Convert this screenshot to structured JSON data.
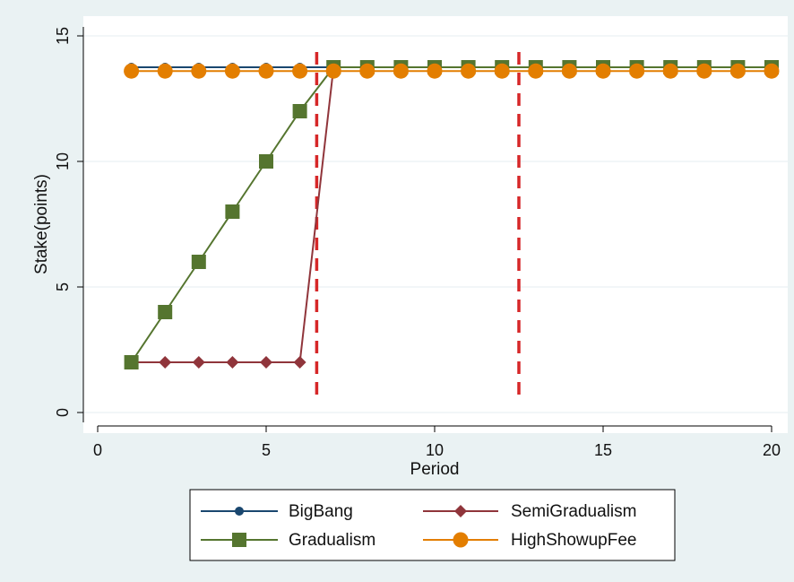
{
  "chart_data": {
    "type": "line",
    "title": "",
    "xlabel": "Period",
    "ylabel": "Stake(points)",
    "xlim": [
      0,
      20
    ],
    "ylim": [
      0,
      15
    ],
    "x_ticks": [
      "0",
      "5",
      "10",
      "15",
      "20"
    ],
    "y_ticks": [
      "0",
      "5",
      "10",
      "15"
    ],
    "grid": "horizontal",
    "legend_position": "bottom",
    "vertical_reference_lines": [
      6.5,
      12.5
    ],
    "reference_line_color": "#d62728",
    "series": [
      {
        "name": "BigBang",
        "color": "#1a476f",
        "marker": "circle-small",
        "x": [
          1,
          2,
          3,
          4,
          5,
          6,
          7,
          8,
          9,
          10,
          11,
          12,
          13,
          14,
          15,
          16,
          17,
          18,
          19,
          20
        ],
        "y": [
          13.75,
          13.75,
          13.75,
          13.75,
          13.75,
          13.75,
          13.75,
          13.75,
          13.75,
          13.75,
          13.75,
          13.75,
          13.75,
          13.75,
          13.75,
          13.75,
          13.75,
          13.75,
          13.75,
          13.75
        ]
      },
      {
        "name": "SemiGradualism",
        "color": "#90353b",
        "marker": "diamond",
        "x": [
          1,
          2,
          3,
          4,
          5,
          6,
          7,
          8,
          9,
          10,
          11,
          12,
          13,
          14,
          15,
          16,
          17,
          18,
          19,
          20
        ],
        "y": [
          2,
          2,
          2,
          2,
          2,
          2,
          13.75,
          13.75,
          13.75,
          13.75,
          13.75,
          13.75,
          13.75,
          13.75,
          13.75,
          13.75,
          13.75,
          13.75,
          13.75,
          13.75
        ]
      },
      {
        "name": "Gradualism",
        "color": "#55752f",
        "marker": "square",
        "x": [
          1,
          2,
          3,
          4,
          5,
          6,
          7,
          8,
          9,
          10,
          11,
          12,
          13,
          14,
          15,
          16,
          17,
          18,
          19,
          20
        ],
        "y": [
          2,
          4,
          6,
          8,
          10,
          12,
          13.75,
          13.75,
          13.75,
          13.75,
          13.75,
          13.75,
          13.75,
          13.75,
          13.75,
          13.75,
          13.75,
          13.75,
          13.75,
          13.75
        ]
      },
      {
        "name": "HighShowupFee",
        "color": "#e37e00",
        "marker": "circle",
        "x": [
          1,
          2,
          3,
          4,
          5,
          6,
          7,
          8,
          9,
          10,
          11,
          12,
          13,
          14,
          15,
          16,
          17,
          18,
          19,
          20
        ],
        "y": [
          13.6,
          13.6,
          13.6,
          13.6,
          13.6,
          13.6,
          13.6,
          13.6,
          13.6,
          13.6,
          13.6,
          13.6,
          13.6,
          13.6,
          13.6,
          13.6,
          13.6,
          13.6,
          13.6,
          13.6
        ]
      }
    ]
  }
}
